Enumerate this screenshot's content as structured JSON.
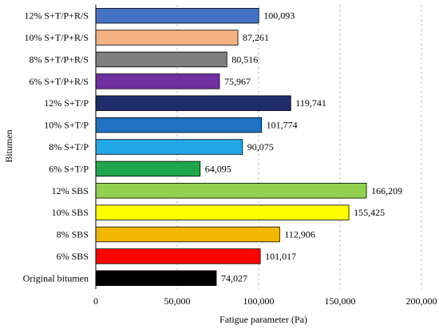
{
  "chart_data": {
    "type": "bar",
    "orientation": "horizontal",
    "xlabel": "Fatigue parameter (Pa)",
    "ylabel": "Bitumen",
    "xlim": [
      0,
      200000
    ],
    "x_ticks": [
      0,
      50000,
      100000,
      150000,
      200000
    ],
    "x_tick_labels": [
      "0",
      "50,000",
      "100,000",
      "150,000",
      "200,000"
    ],
    "grid": "vertical dashed",
    "bars": [
      {
        "category": "12% S+T/P+R/S",
        "value": 100093,
        "label": "100,093",
        "color": "#4472c4"
      },
      {
        "category": "10% S+T/P+R/S",
        "value": 87261,
        "label": "87,261",
        "color": "#f4b183"
      },
      {
        "category": "8% S+T/P+R/S",
        "value": 80516,
        "label": "80,516",
        "color": "#7f7f7f"
      },
      {
        "category": "6% S+T/P+R/S",
        "value": 75967,
        "label": "75,967",
        "color": "#7030a0"
      },
      {
        "category": "12% S+T/P",
        "value": 119741,
        "label": "119,741",
        "color": "#1f2d6b"
      },
      {
        "category": "10% S+T/P",
        "value": 101774,
        "label": "101,774",
        "color": "#1f72c4"
      },
      {
        "category": "8% S+T/P",
        "value": 90075,
        "label": "90,075",
        "color": "#21a7e8"
      },
      {
        "category": "6% S+T/P",
        "value": 64095,
        "label": "64,095",
        "color": "#1fa64b"
      },
      {
        "category": "12% SBS",
        "value": 166209,
        "label": "166,209",
        "color": "#92d050"
      },
      {
        "category": "10% SBS",
        "value": 155425,
        "label": "155,425",
        "color": "#ffff00"
      },
      {
        "category": "8% SBS",
        "value": 112906,
        "label": "112,906",
        "color": "#f2b800"
      },
      {
        "category": "6% SBS",
        "value": 101017,
        "label": "101,017",
        "color": "#ff0000"
      },
      {
        "category": "Original bitumen",
        "value": 74027,
        "label": "74,027",
        "color": "#000000"
      }
    ]
  }
}
